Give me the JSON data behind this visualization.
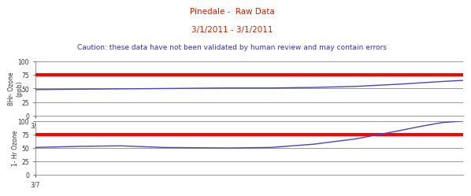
{
  "title_line1": "Pinedale -  Raw Data",
  "title_line2": "3/1/2011 - 3/1/2011",
  "caution": "Caution: these data have not been validated by human review and may contain errors",
  "title_color": "#cc2200",
  "caution_color": "#3333aa",
  "ylabel_top": "8Hr- Ozone\n(ppb)",
  "ylabel_bottom": "1- Hr Ozone",
  "xlabel": "3/7",
  "ylim": [
    0,
    100
  ],
  "yticks": [
    0,
    25,
    50,
    75,
    100
  ],
  "red_line_y": 75,
  "red_color": "#ff0000",
  "blue_color": "#4444cc",
  "bg_color": "#ffffff",
  "grid_color": "#888888",
  "top_x": [
    0.0,
    0.15,
    0.3,
    0.45,
    0.55,
    0.65,
    0.75,
    0.85,
    0.95,
    1.0
  ],
  "top_y": [
    48,
    49,
    50,
    51,
    51,
    52,
    54,
    58,
    63,
    65
  ],
  "bottom_x": [
    0.0,
    0.05,
    0.1,
    0.2,
    0.3,
    0.45,
    0.55,
    0.65,
    0.75,
    0.85,
    0.9,
    0.95,
    1.0
  ],
  "bottom_y": [
    51,
    52,
    53,
    54,
    51,
    50,
    51,
    57,
    67,
    82,
    90,
    97,
    100
  ]
}
